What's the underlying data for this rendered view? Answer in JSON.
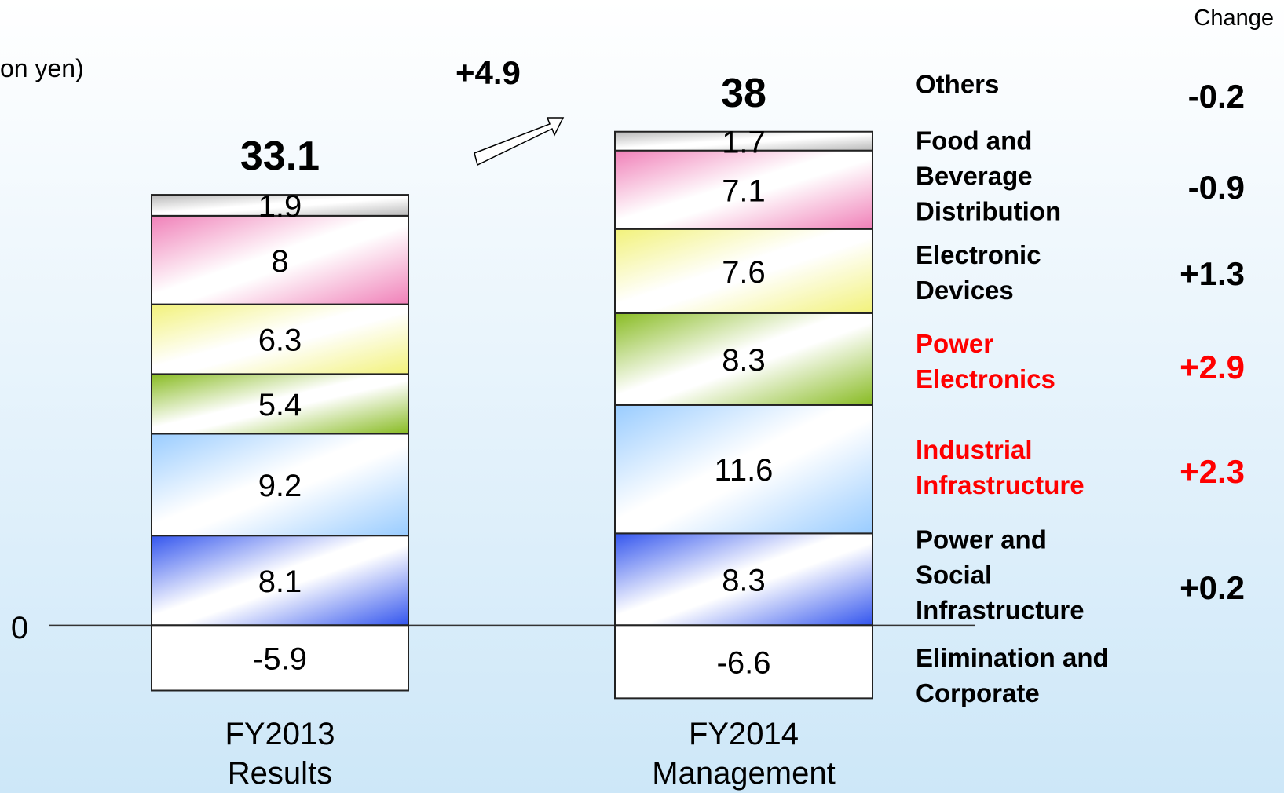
{
  "chart_data": {
    "type": "stacked-bar",
    "unit_label": "on yen)",
    "categories": [
      "FY2013\nResults",
      "FY2014\nManagement"
    ],
    "totals": [
      33.1,
      38.0
    ],
    "total_change": 4.9,
    "total_change_label": "+4.9",
    "change_header": "Change",
    "ylim": [
      -7,
      46
    ],
    "yticks": [
      0
    ],
    "series": [
      {
        "name": "Power and Social Infrastructure",
        "color": "#3355ee",
        "text_color": "#000000",
        "values": [
          8.1,
          8.3
        ],
        "change": 0.2,
        "change_label": "+0.2"
      },
      {
        "name": "Industrial Infrastructure",
        "color": "#99ccff",
        "text_color": "#ff0000",
        "values": [
          9.2,
          11.6
        ],
        "change": 2.3,
        "change_label": "+2.3"
      },
      {
        "name": "Power Electronics",
        "color": "#88bb22",
        "text_color": "#ff0000",
        "values": [
          5.4,
          8.3
        ],
        "change": 2.9,
        "change_label": "+2.9"
      },
      {
        "name": "Electronic Devices",
        "color": "#f2f27a",
        "text_color": "#000000",
        "values": [
          6.3,
          7.6
        ],
        "change": 1.3,
        "change_label": "+1.3"
      },
      {
        "name": "Food and Beverage Distribution",
        "color": "#f080b8",
        "text_color": "#000000",
        "values": [
          8.0,
          7.1
        ],
        "change": -0.9
      },
      {
        "name": "Others",
        "color": "#b8b8b8",
        "text_color": "#000000",
        "values": [
          1.9,
          1.7
        ],
        "change": -0.2
      },
      {
        "name": "Elimination and Corporate",
        "color": "#ffffff",
        "text_color": "#000000",
        "values": [
          -5.9,
          -6.6
        ]
      }
    ]
  }
}
